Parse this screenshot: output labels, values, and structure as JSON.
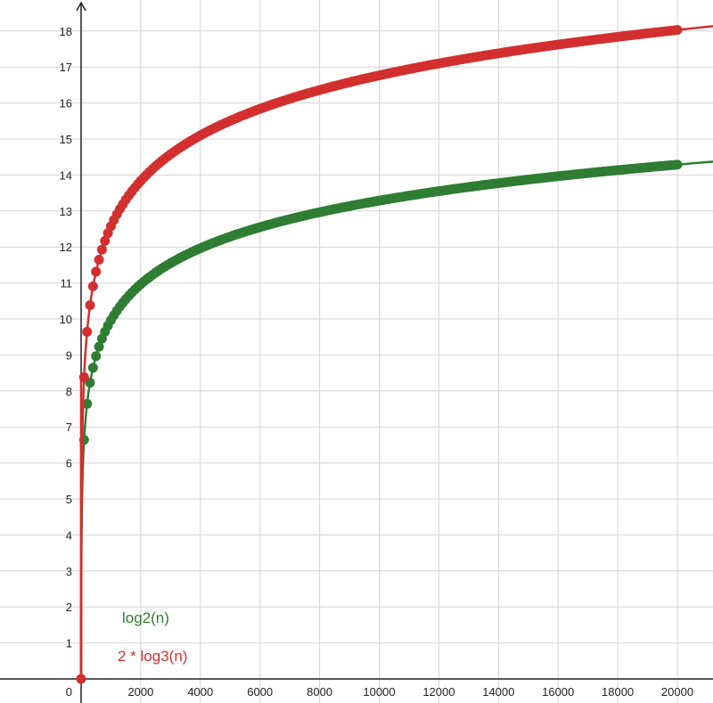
{
  "chart_data": {
    "type": "scatter",
    "title": "",
    "xlabel": "",
    "ylabel": "",
    "xlim": [
      0,
      21000
    ],
    "ylim": [
      0,
      18.8
    ],
    "x_ticks": [
      2000,
      4000,
      6000,
      8000,
      10000,
      12000,
      14000,
      16000,
      18000,
      20000
    ],
    "y_ticks": [
      1,
      2,
      3,
      4,
      5,
      6,
      7,
      8,
      9,
      10,
      11,
      12,
      13,
      14,
      15,
      16,
      17,
      18
    ],
    "origin_label": "0",
    "grid": true,
    "point_x_start": 100,
    "point_x_end": 20000,
    "point_x_step": 100,
    "series": [
      {
        "name": "log2(n)",
        "function": "log2(n)",
        "color": "#2e7d32",
        "points": [
          [
            1,
            0
          ],
          [
            100,
            6.64
          ],
          [
            200,
            7.64
          ],
          [
            300,
            8.23
          ],
          [
            400,
            8.64
          ],
          [
            500,
            8.97
          ],
          [
            1000,
            9.97
          ],
          [
            2000,
            10.97
          ],
          [
            4000,
            11.97
          ],
          [
            8000,
            12.97
          ],
          [
            10000,
            13.29
          ],
          [
            16000,
            13.97
          ],
          [
            20000,
            14.29
          ]
        ]
      },
      {
        "name": "2 * log3(n)",
        "function": "2*log3(n)",
        "color": "#d32f2f",
        "points": [
          [
            1,
            0
          ],
          [
            100,
            8.38
          ],
          [
            200,
            9.64
          ],
          [
            300,
            10.38
          ],
          [
            400,
            10.91
          ],
          [
            500,
            11.31
          ],
          [
            1000,
            12.58
          ],
          [
            2000,
            13.84
          ],
          [
            4000,
            15.1
          ],
          [
            8000,
            16.36
          ],
          [
            10000,
            16.77
          ],
          [
            16000,
            17.62
          ],
          [
            20000,
            18.03
          ]
        ]
      }
    ],
    "legend": {
      "placement": "bottom-left",
      "entries": [
        {
          "label": "log2(n)",
          "color": "#2e7d32"
        },
        {
          "label": "2 * log3(n)",
          "color": "#d32f2f"
        }
      ]
    }
  }
}
